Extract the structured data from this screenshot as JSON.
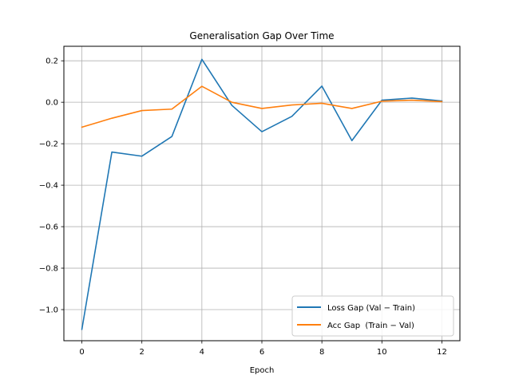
{
  "chart_data": {
    "type": "line",
    "title": "Generalisation Gap Over Time",
    "xlabel": "Epoch",
    "ylabel": "",
    "x": [
      0,
      1,
      2,
      3,
      4,
      5,
      6,
      7,
      8,
      9,
      10,
      11,
      12
    ],
    "xlim": [
      -0.6,
      12.6
    ],
    "ylim": [
      -1.15,
      0.27
    ],
    "xticks": [
      0,
      2,
      4,
      6,
      8,
      10,
      12
    ],
    "yticks": [
      -1.0,
      -0.8,
      -0.6,
      -0.4,
      -0.2,
      0.0,
      0.2
    ],
    "x_tick_labels": [
      "0",
      "2",
      "4",
      "6",
      "8",
      "10",
      "12"
    ],
    "y_tick_labels": [
      "−1.0",
      "−0.8",
      "−0.6",
      "−0.4",
      "−0.2",
      "0.0",
      "0.2"
    ],
    "grid": true,
    "legend_position": "lower-right",
    "series": [
      {
        "name": "Loss Gap (Val − Train)",
        "color": "#1f77b4",
        "values": [
          -1.095,
          -0.24,
          -0.26,
          -0.165,
          0.207,
          -0.015,
          -0.142,
          -0.068,
          0.078,
          -0.185,
          0.01,
          0.02,
          0.006
        ]
      },
      {
        "name": "Acc Gap  (Train − Val)",
        "color": "#ff7f0e",
        "values": [
          -0.12,
          -0.077,
          -0.04,
          -0.033,
          0.077,
          0.0,
          -0.03,
          -0.013,
          -0.005,
          -0.03,
          0.005,
          0.01,
          0.003
        ]
      }
    ]
  }
}
